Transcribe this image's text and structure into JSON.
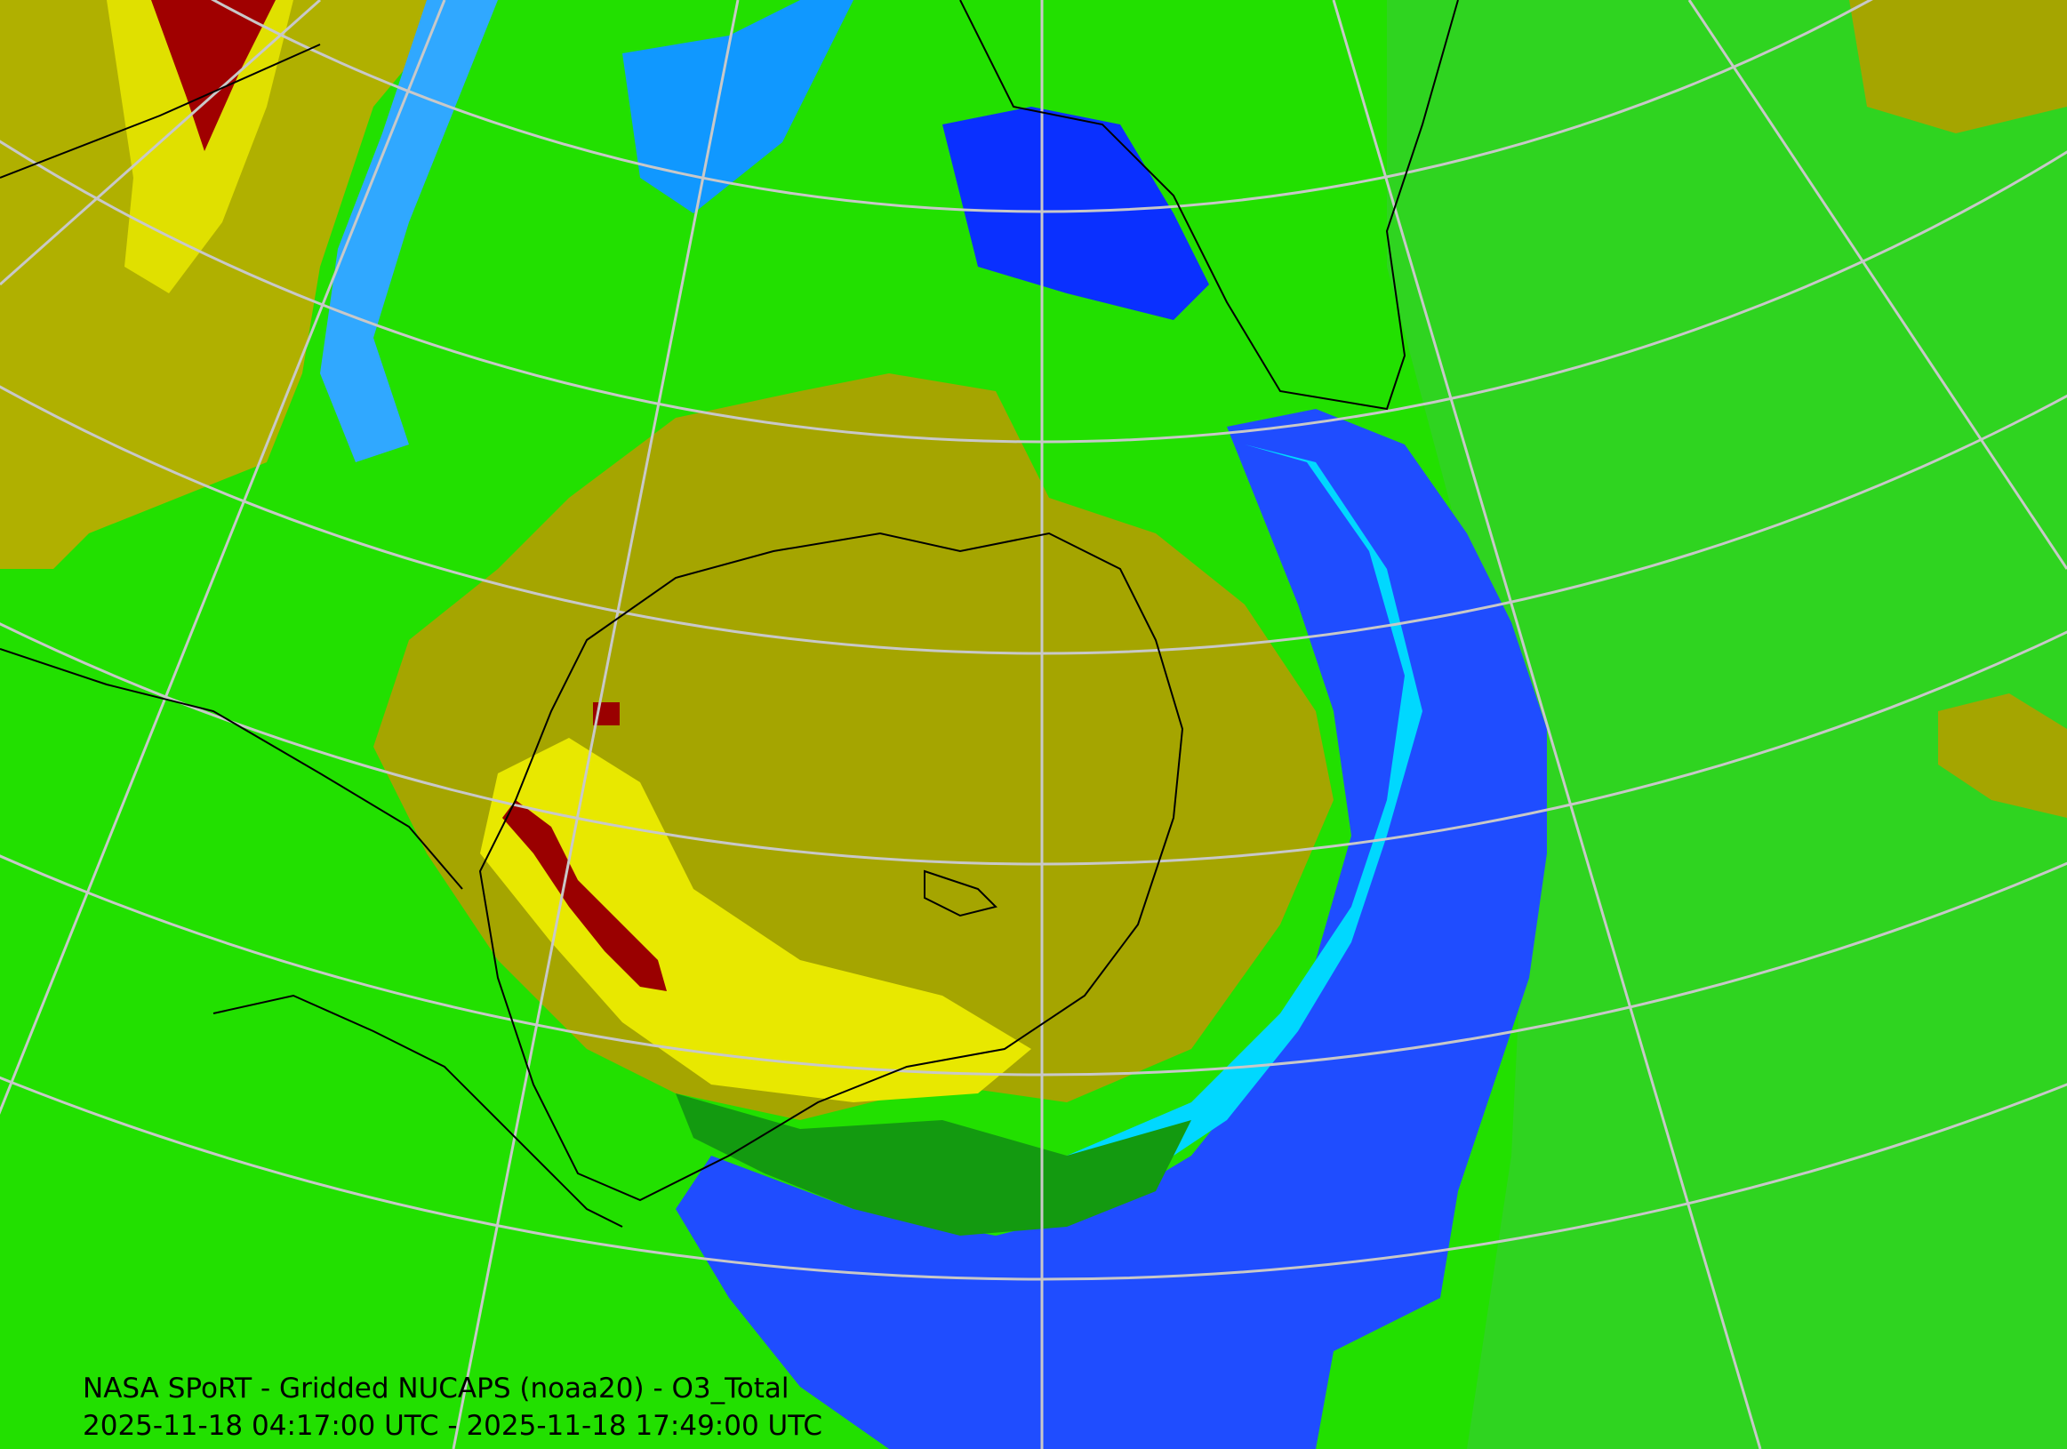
{
  "map": {
    "caption": {
      "title": "NASA SPoRT - Gridded NUCAPS (noaa20) - O3_Total",
      "time_range": "2025-11-18 04:17:00 UTC - 2025-11-18 17:49:00 UTC"
    }
  }
}
